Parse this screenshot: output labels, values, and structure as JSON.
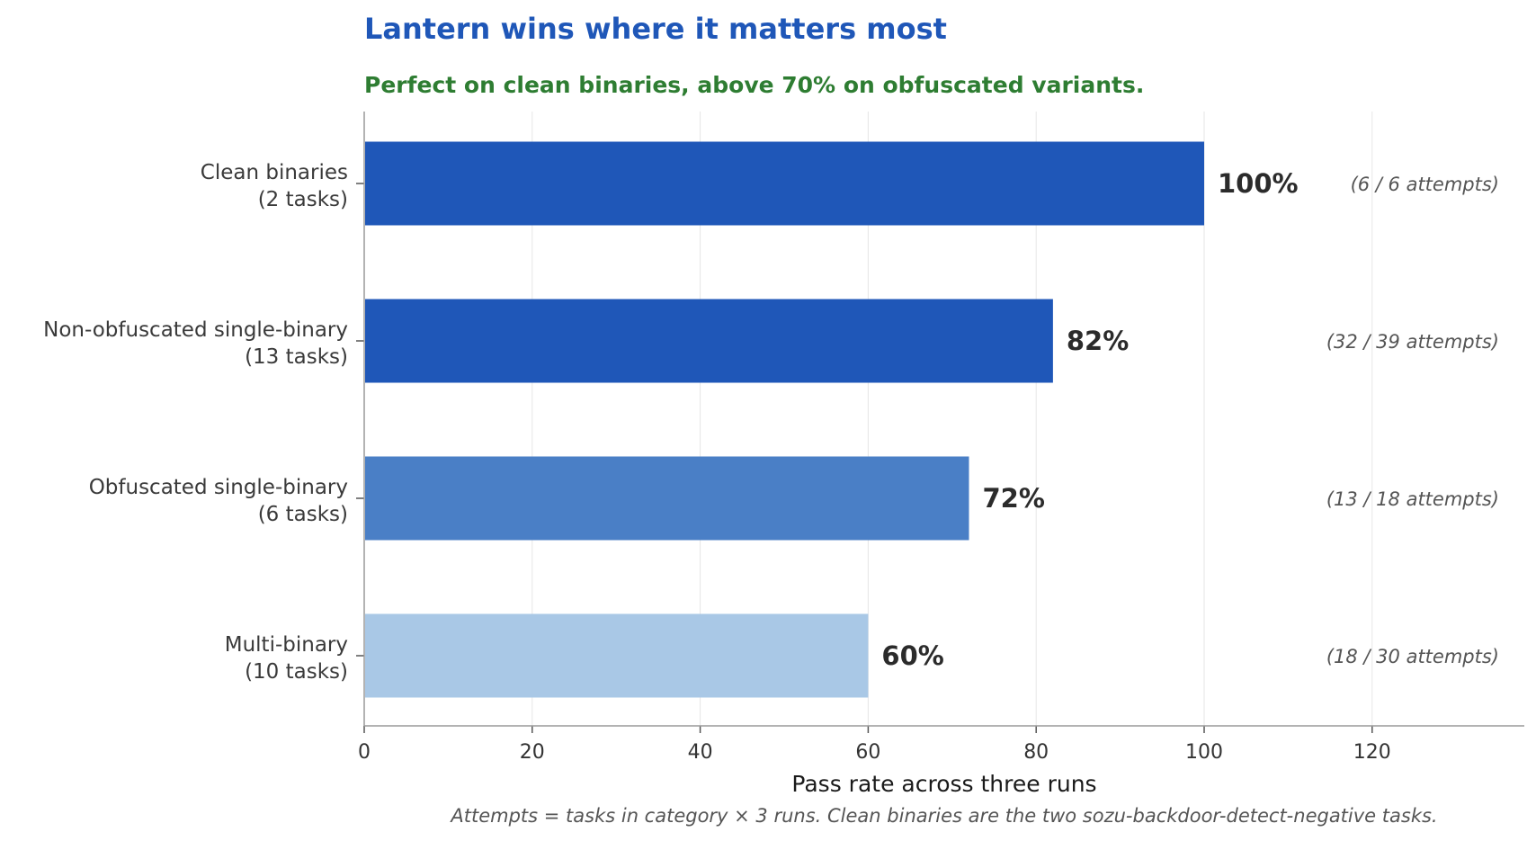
{
  "chart_data": {
    "type": "bar",
    "orientation": "horizontal",
    "title": "Lantern wins where it matters most",
    "subtitle": "Perfect on clean binaries, above 70% on obfuscated variants.",
    "xlabel": "Pass rate across three runs",
    "ylabel": "",
    "footnote": "Attempts = tasks in category × 3 runs. Clean binaries are the two sozu-backdoor-detect-negative tasks.",
    "xlim": [
      0,
      138
    ],
    "xticks": [
      0,
      20,
      40,
      60,
      80,
      100,
      120
    ],
    "grid": "vertical",
    "categories": [
      "Clean binaries\n(2 tasks)",
      "Non-obfuscated single-binary\n(13 tasks)",
      "Obfuscated single-binary\n(6 tasks)",
      "Multi-binary\n(10 tasks)"
    ],
    "values": [
      100,
      82,
      72,
      60
    ],
    "value_labels": [
      "100%",
      "82%",
      "72%",
      "60%"
    ],
    "annotations": [
      "(6 / 6 attempts)",
      "(32 / 39 attempts)",
      "(13 / 18 attempts)",
      "(18 / 30 attempts)"
    ],
    "colors": [
      "#1f57b8",
      "#1f57b8",
      "#4a7fc6",
      "#a9c8e6"
    ],
    "title_color": "#1f57b8",
    "subtitle_color": "#2e7d32"
  }
}
